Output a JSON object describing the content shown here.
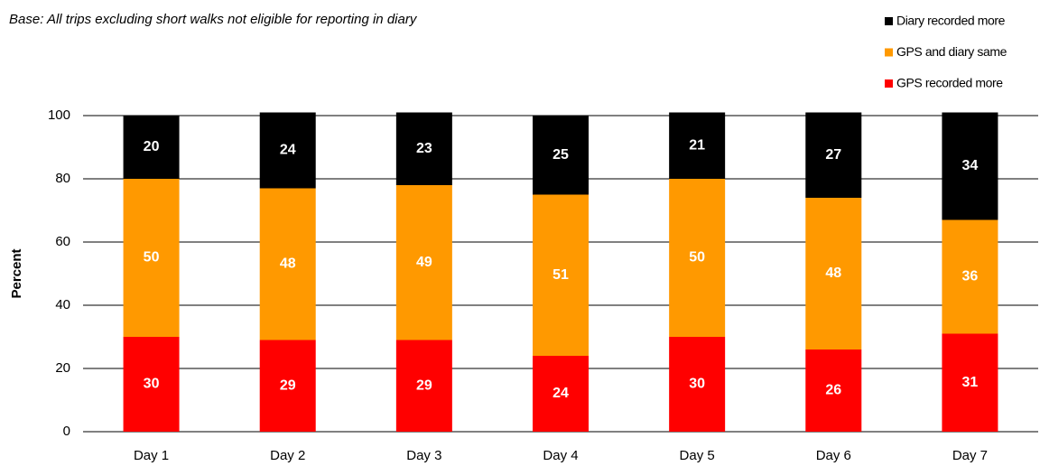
{
  "chart_data": {
    "type": "stacked_bar",
    "subtitle": "Base: All trips excluding short walks not eligible for reporting in diary",
    "y_label": "Percent",
    "categories": [
      "Day 1",
      "Day 2",
      "Day 3",
      "Day 4",
      "Day 5",
      "Day 6",
      "Day 7"
    ],
    "series": [
      {
        "name": "GPS recorded more",
        "color": "#ff0000",
        "values": [
          30,
          29,
          29,
          24,
          30,
          26,
          31
        ]
      },
      {
        "name": "GPS and diary same",
        "color": "#ff9900",
        "values": [
          50,
          48,
          49,
          51,
          50,
          48,
          36
        ]
      },
      {
        "name": "Diary recorded more",
        "color": "#000000",
        "values": [
          20,
          24,
          23,
          25,
          21,
          27,
          34
        ]
      }
    ],
    "ylim": [
      0,
      100
    ],
    "yticks": [
      0,
      20,
      40,
      60,
      80,
      100
    ],
    "grid": true,
    "legend": "top-right"
  }
}
